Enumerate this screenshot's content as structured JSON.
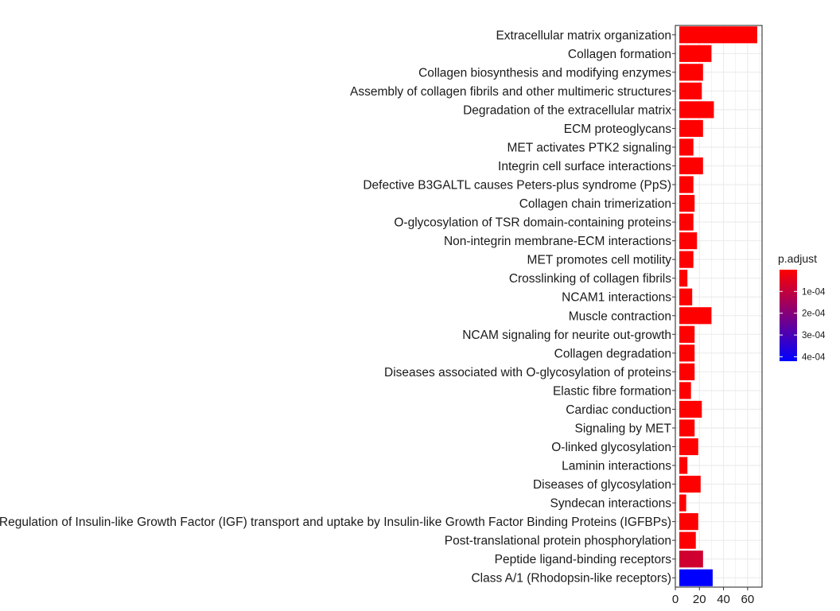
{
  "chart_data": {
    "type": "bar",
    "orientation": "horizontal",
    "categories": [
      "Extracellular matrix organization",
      "Collagen formation",
      "Collagen biosynthesis and modifying enzymes",
      "Assembly of collagen fibrils and other multimeric structures",
      "Degradation of the extracellular matrix",
      "ECM proteoglycans",
      "MET activates PTK2 signaling",
      "Integrin cell surface interactions",
      "Defective B3GALTL causes Peters-plus syndrome (PpS)",
      "Collagen chain trimerization",
      "O-glycosylation of TSR domain-containing proteins",
      "Non-integrin membrane-ECM interactions",
      "MET promotes cell motility",
      "Crosslinking of collagen fibrils",
      "NCAM1 interactions",
      "Muscle contraction",
      "NCAM signaling for neurite out-growth",
      "Collagen degradation",
      "Diseases associated with O-glycosylation of proteins",
      "Elastic fibre formation",
      "Cardiac conduction",
      "Signaling by MET",
      "O-linked glycosylation",
      "Laminin interactions",
      "Diseases of glycosylation",
      "Syndecan interactions",
      "Regulation of Insulin-like Growth Factor (IGF) transport and uptake by Insulin-like Growth Factor Binding Proteins (IGFBPs)",
      "Post-translational protein phosphorylation",
      "Peptide ligand-binding receptors",
      "Class A/1 (Rhodopsin-like receptors)"
    ],
    "values": [
      68,
      30,
      23,
      22,
      32,
      23,
      15,
      23,
      15,
      16,
      15,
      18,
      15,
      10,
      14,
      30,
      16,
      16,
      16,
      13,
      22,
      16,
      19,
      10,
      21,
      9,
      19,
      17,
      23,
      31
    ],
    "p_adjust": [
      1e-06,
      1e-06,
      1e-06,
      1e-06,
      1e-06,
      1e-06,
      1e-06,
      1e-06,
      1e-06,
      1e-06,
      1e-06,
      1e-06,
      1e-06,
      1e-06,
      1e-06,
      1e-06,
      1e-06,
      1e-06,
      1e-06,
      1e-06,
      1e-06,
      1e-06,
      1e-06,
      1e-06,
      1e-06,
      1e-06,
      3e-06,
      3e-06,
      8e-05,
      0.00042
    ],
    "xlim": [
      0,
      72
    ],
    "xticks": [
      0,
      20,
      40,
      60
    ],
    "grid": true,
    "legend": {
      "title": "p.adjust",
      "placement": "right",
      "range": [
        5e-07,
        0.00042
      ],
      "ticks": [
        0.0001,
        0.0002,
        0.0003,
        0.0004
      ],
      "tick_labels": [
        "1e-04",
        "2e-04",
        "3e-04",
        "4e-04"
      ],
      "low_color": "#ff0000",
      "high_color": "#0000ff"
    },
    "colors": {
      "panel_border": "#333333",
      "grid": "#ebebeb",
      "text": "#1a1a1a"
    }
  }
}
